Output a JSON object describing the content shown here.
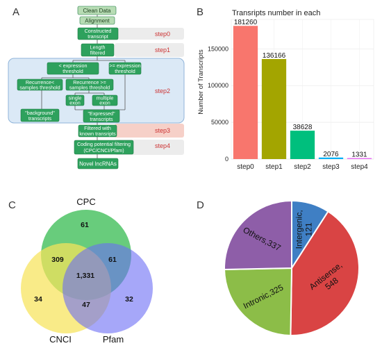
{
  "panels": {
    "A": {
      "letter": "A",
      "flowchart": {
        "clean_data": "Clean Data",
        "alignment": "Alignment",
        "constructed_transcript": [
          "Constructed",
          "transcript"
        ],
        "length_filtered": [
          "Length",
          "filtered"
        ],
        "less_expression": [
          "< expression",
          "threshold"
        ],
        "greater_expression": [
          ">= expression",
          "threshold"
        ],
        "recurrence_less": [
          "Recurrence<",
          "samples threshold"
        ],
        "recurrence_greater": [
          "Recurrence >=",
          "samples threshold"
        ],
        "single_exon": [
          "single",
          "exon"
        ],
        "multiple_exon": [
          "multiple",
          "exon"
        ],
        "background": [
          "\"background\"",
          "transcripts"
        ],
        "expressed": [
          "\"Expressed\"",
          "transcripts"
        ],
        "filtered_known": [
          "Filtered with",
          "known transripts"
        ],
        "coding_potential": [
          "Coding potential filtering",
          "(CPC/CNCI/Pfam)"
        ],
        "novel": "Novel lncRNAs",
        "steps": [
          "step0",
          "step1",
          "step2",
          "step3",
          "step4"
        ]
      }
    },
    "B": {
      "letter": "B"
    },
    "C": {
      "letter": "C",
      "sets": [
        "CPC",
        "CNCI",
        "Pfam"
      ],
      "regions": {
        "cpc_only": "61",
        "cnci_only": "34",
        "pfam_only": "32",
        "cpc_cnci": "309",
        "cpc_pfam": "61",
        "cnci_pfam": "47",
        "all": "1,331"
      },
      "colors": {
        "cpc": "#2eb84a",
        "cnci": "#f7e35a",
        "pfam": "#6b6cf5"
      }
    },
    "D": {
      "letter": "D"
    }
  },
  "chart_data": [
    {
      "type": "bar",
      "title": "Transripts number in each",
      "xlabel": "",
      "ylabel": "Number of Transcripts",
      "categories": [
        "step0",
        "step1",
        "step2",
        "step3",
        "step4"
      ],
      "values": [
        181260,
        136166,
        38628,
        2076,
        1331
      ],
      "data_labels": [
        "181260",
        "136166",
        "38628",
        "2076",
        "1331"
      ],
      "colors": [
        "#f8766d",
        "#a3a500",
        "#00bf7d",
        "#00b0f6",
        "#e76bf3"
      ],
      "yticks": [
        0,
        50000,
        100000,
        150000
      ],
      "ytick_labels": [
        "0",
        "50000",
        "100000",
        "150000"
      ],
      "ylim": [
        0,
        190000
      ],
      "grid": true
    },
    {
      "type": "pie",
      "labels": [
        "Intergenic,",
        "Antisense,",
        "Intronic,325",
        "Others,337"
      ],
      "value_labels": [
        "121",
        "548",
        "",
        ""
      ],
      "values": [
        121,
        548,
        325,
        337
      ],
      "colors": [
        "#3f7fc4",
        "#d94444",
        "#8cbd48",
        "#8e5ea8"
      ]
    }
  ]
}
